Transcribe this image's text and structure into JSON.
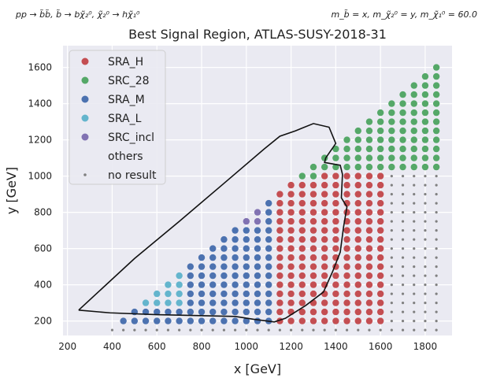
{
  "chart_data": {
    "type": "scatter",
    "title": "Best Signal Region, ATLAS-SUSY-2018-31",
    "process": "pp → b̃b̃, b̃ → bχ̃₂⁰, χ̃₂⁰ → hχ̃₁⁰",
    "masses": "m_b̃ = x, m_χ̃₂⁰ = y, m_χ̃₁⁰ = 60.0",
    "xlabel": "x [GeV]",
    "ylabel": "y [GeV]",
    "xlim": [
      180,
      1920
    ],
    "ylim": [
      120,
      1720
    ],
    "xticks": [
      200,
      400,
      600,
      800,
      1000,
      1200,
      1400,
      1600,
      1800
    ],
    "yticks": [
      200,
      400,
      600,
      800,
      1000,
      1200,
      1400,
      1600
    ],
    "grid": true,
    "background": "#eaeaf2",
    "legend_position": "top-left",
    "legend": [
      {
        "label": "SRA_H",
        "color": "#c44e52",
        "marker": "dot"
      },
      {
        "label": "SRC_28",
        "color": "#55a868",
        "marker": "dot"
      },
      {
        "label": "SRA_M",
        "color": "#4c72b0",
        "marker": "dot"
      },
      {
        "label": "SRA_L",
        "color": "#64b5cd",
        "marker": "dot"
      },
      {
        "label": "SRC_incl",
        "color": "#8172b2",
        "marker": "dot"
      },
      {
        "label": "others",
        "color": "",
        "marker": "none"
      },
      {
        "label": "no result",
        "color": "#808080",
        "marker": "small"
      }
    ],
    "grid_spacing": {
      "x": 50,
      "y": 50
    },
    "region_rules": [
      {
        "series": "SRA_L",
        "x_max": 750,
        "note": "above y=200 band"
      },
      {
        "series": "SRA_M",
        "x_range": [
          650,
          1100
        ]
      },
      {
        "series": "SRC_incl",
        "x_range": [
          750,
          1050
        ],
        "near_diagonal": true
      },
      {
        "series": "SRA_H",
        "x_range": [
          1000,
          1600
        ]
      },
      {
        "series": "SRC_28",
        "y_min_range": [
          200,
          1550
        ],
        "near_diagonal": true
      }
    ],
    "contour": [
      [
        250,
        260
      ],
      [
        390,
        245
      ],
      [
        600,
        235
      ],
      [
        950,
        225
      ],
      [
        1030,
        210
      ],
      [
        1125,
        195
      ],
      [
        1175,
        215
      ],
      [
        1265,
        285
      ],
      [
        1345,
        360
      ],
      [
        1385,
        470
      ],
      [
        1420,
        580
      ],
      [
        1435,
        720
      ],
      [
        1450,
        830
      ],
      [
        1425,
        880
      ],
      [
        1430,
        1010
      ],
      [
        1420,
        1060
      ],
      [
        1350,
        1075
      ],
      [
        1355,
        1100
      ],
      [
        1400,
        1180
      ],
      [
        1370,
        1270
      ],
      [
        1300,
        1290
      ],
      [
        1220,
        1250
      ],
      [
        1150,
        1220
      ],
      [
        1080,
        1150
      ],
      [
        900,
        960
      ],
      [
        700,
        750
      ],
      [
        500,
        545
      ],
      [
        250,
        260
      ]
    ]
  }
}
